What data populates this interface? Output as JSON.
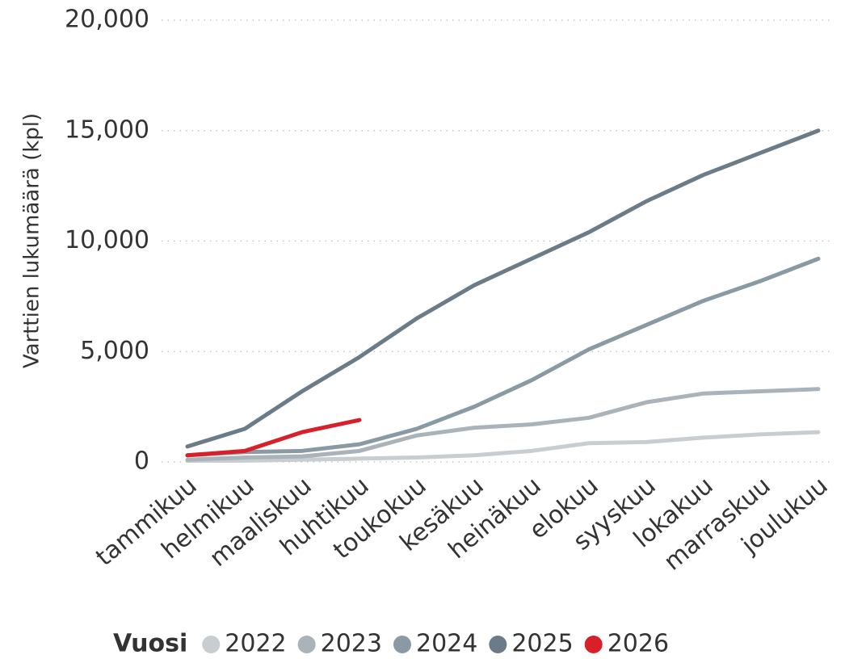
{
  "chart_data": {
    "type": "line",
    "y_label": "Varttien lukumäärä (kpl)",
    "legend_title": "Vuosi",
    "categories": [
      "tammikuu",
      "helmikuu",
      "maaliskuu",
      "huhtikuu",
      "toukokuu",
      "kesäkuu",
      "heinäkuu",
      "elokuu",
      "syyskuu",
      "lokakuu",
      "marraskuu",
      "joulukuu"
    ],
    "series": [
      {
        "name": "2022",
        "color": "#c8cdd1",
        "values": [
          50,
          60,
          100,
          150,
          200,
          300,
          500,
          850,
          900,
          1100,
          1250,
          1350
        ]
      },
      {
        "name": "2023",
        "color": "#a9b3b9",
        "values": [
          100,
          200,
          250,
          500,
          1200,
          1550,
          1700,
          2000,
          2700,
          3100,
          3200,
          3300
        ]
      },
      {
        "name": "2024",
        "color": "#8a9aa4",
        "values": [
          300,
          450,
          500,
          800,
          1500,
          2500,
          3700,
          5100,
          6200,
          7300,
          8200,
          9200
        ]
      },
      {
        "name": "2025",
        "color": "#6b7c88",
        "values": [
          700,
          1500,
          3200,
          4750,
          6500,
          8000,
          9200,
          10400,
          11800,
          13000,
          14000,
          15000
        ]
      },
      {
        "name": "2026",
        "color": "#d8202a",
        "values": [
          300,
          500,
          1350,
          1900,
          null,
          null,
          null,
          null,
          null,
          null,
          null,
          null
        ]
      }
    ],
    "ylim": [
      0,
      20000
    ],
    "yticks": [
      0,
      {
        "value": 5000,
        "label": "5,000"
      },
      {
        "value": 10000,
        "label": "10,000"
      },
      {
        "value": 15000,
        "label": "15,000"
      },
      {
        "value": 20000,
        "label": "20,000"
      }
    ],
    "grid": true,
    "legend_position": "bottom"
  }
}
